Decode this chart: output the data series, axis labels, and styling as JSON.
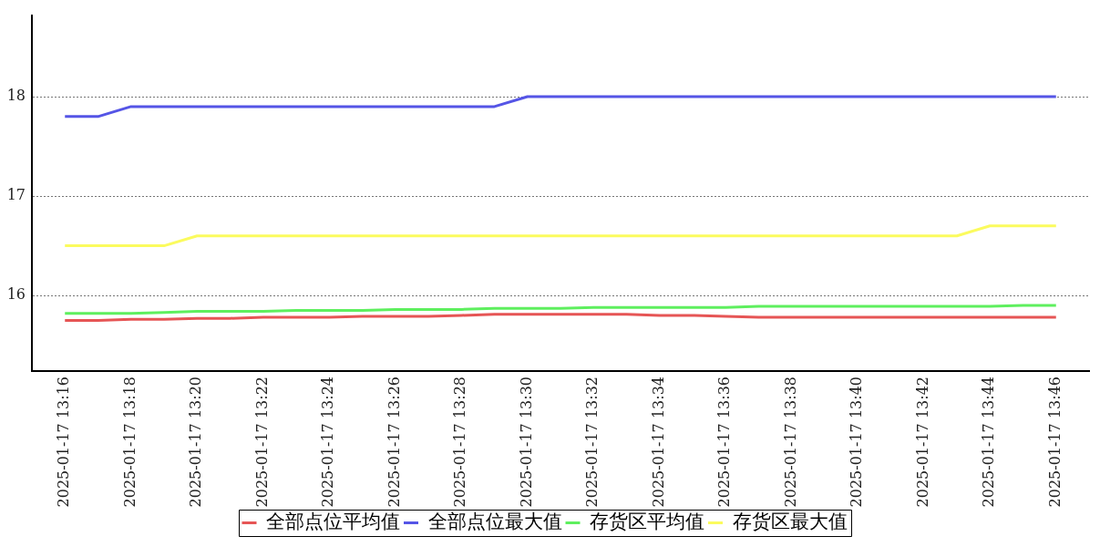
{
  "chart_data": {
    "type": "line",
    "x": [
      "2025-01-17T13:16",
      "2025-01-17T13:17",
      "2025-01-17T13:18",
      "2025-01-17T13:19",
      "2025-01-17T13:20",
      "2025-01-17T13:21",
      "2025-01-17T13:22",
      "2025-01-17T13:23",
      "2025-01-17T13:24",
      "2025-01-17T13:25",
      "2025-01-17T13:26",
      "2025-01-17T13:27",
      "2025-01-17T13:28",
      "2025-01-17T13:29",
      "2025-01-17T13:30",
      "2025-01-17T13:31",
      "2025-01-17T13:32",
      "2025-01-17T13:33",
      "2025-01-17T13:34",
      "2025-01-17T13:35",
      "2025-01-17T13:36",
      "2025-01-17T13:37",
      "2025-01-17T13:38",
      "2025-01-17T13:39",
      "2025-01-17T13:40",
      "2025-01-17T13:41",
      "2025-01-17T13:42",
      "2025-01-17T13:43",
      "2025-01-17T13:44",
      "2025-01-17T13:45",
      "2025-01-17T13:46"
    ],
    "series": [
      {
        "name": "全部点位平均值",
        "color": "#e65555",
        "values": [
          15.75,
          15.75,
          15.76,
          15.76,
          15.77,
          15.77,
          15.78,
          15.78,
          15.78,
          15.79,
          15.79,
          15.79,
          15.8,
          15.81,
          15.81,
          15.81,
          15.81,
          15.81,
          15.8,
          15.8,
          15.79,
          15.78,
          15.78,
          15.78,
          15.78,
          15.78,
          15.78,
          15.78,
          15.78,
          15.78,
          15.78
        ]
      },
      {
        "name": "全部点位最大值",
        "color": "#5555e6",
        "values": [
          17.8,
          17.8,
          17.9,
          17.9,
          17.9,
          17.9,
          17.9,
          17.9,
          17.9,
          17.9,
          17.9,
          17.9,
          17.9,
          17.9,
          18,
          18,
          18,
          18,
          18,
          18,
          18,
          18,
          18,
          18,
          18,
          18,
          18,
          18,
          18,
          18,
          18
        ]
      },
      {
        "name": "存货区平均值",
        "color": "#5eef5e",
        "values": [
          15.82,
          15.82,
          15.82,
          15.83,
          15.84,
          15.84,
          15.84,
          15.85,
          15.85,
          15.85,
          15.86,
          15.86,
          15.86,
          15.87,
          15.87,
          15.87,
          15.88,
          15.88,
          15.88,
          15.88,
          15.88,
          15.89,
          15.89,
          15.89,
          15.89,
          15.89,
          15.89,
          15.89,
          15.89,
          15.9,
          15.9
        ]
      },
      {
        "name": "存货区最大值",
        "color": "#fbfb5e",
        "values": [
          16.5,
          16.5,
          16.5,
          16.5,
          16.6,
          16.6,
          16.6,
          16.6,
          16.6,
          16.6,
          16.6,
          16.6,
          16.6,
          16.6,
          16.6,
          16.6,
          16.6,
          16.6,
          16.6,
          16.6,
          16.6,
          16.6,
          16.6,
          16.6,
          16.6,
          16.6,
          16.6,
          16.6,
          16.7,
          16.7,
          16.7
        ]
      }
    ],
    "xlim": [
      "2025-01-17T13:15",
      "2025-01-17T13:47"
    ],
    "xticks": [
      {
        "value": "2025-01-17T13:16",
        "label": "2025-01-17 13:16"
      },
      {
        "value": "2025-01-17T13:18",
        "label": "2025-01-17 13:18"
      },
      {
        "value": "2025-01-17T13:20",
        "label": "2025-01-17 13:20"
      },
      {
        "value": "2025-01-17T13:22",
        "label": "2025-01-17 13:22"
      },
      {
        "value": "2025-01-17T13:24",
        "label": "2025-01-17 13:24"
      },
      {
        "value": "2025-01-17T13:26",
        "label": "2025-01-17 13:26"
      },
      {
        "value": "2025-01-17T13:28",
        "label": "2025-01-17 13:28"
      },
      {
        "value": "2025-01-17T13:30",
        "label": "2025-01-17 13:30"
      },
      {
        "value": "2025-01-17T13:32",
        "label": "2025-01-17 13:32"
      },
      {
        "value": "2025-01-17T13:34",
        "label": "2025-01-17 13:34"
      },
      {
        "value": "2025-01-17T13:36",
        "label": "2025-01-17 13:36"
      },
      {
        "value": "2025-01-17T13:38",
        "label": "2025-01-17 13:38"
      },
      {
        "value": "2025-01-17T13:40",
        "label": "2025-01-17 13:40"
      },
      {
        "value": "2025-01-17T13:42",
        "label": "2025-01-17 13:42"
      },
      {
        "value": "2025-01-17T13:44",
        "label": "2025-01-17 13:44"
      },
      {
        "value": "2025-01-17T13:46",
        "label": "2025-01-17 13:46"
      }
    ],
    "ylim": [
      15.24,
      18.82
    ],
    "yticks": [
      16,
      17,
      18
    ],
    "grid": "y",
    "legend": "bottom",
    "marker": "none",
    "line_style": "solid"
  }
}
